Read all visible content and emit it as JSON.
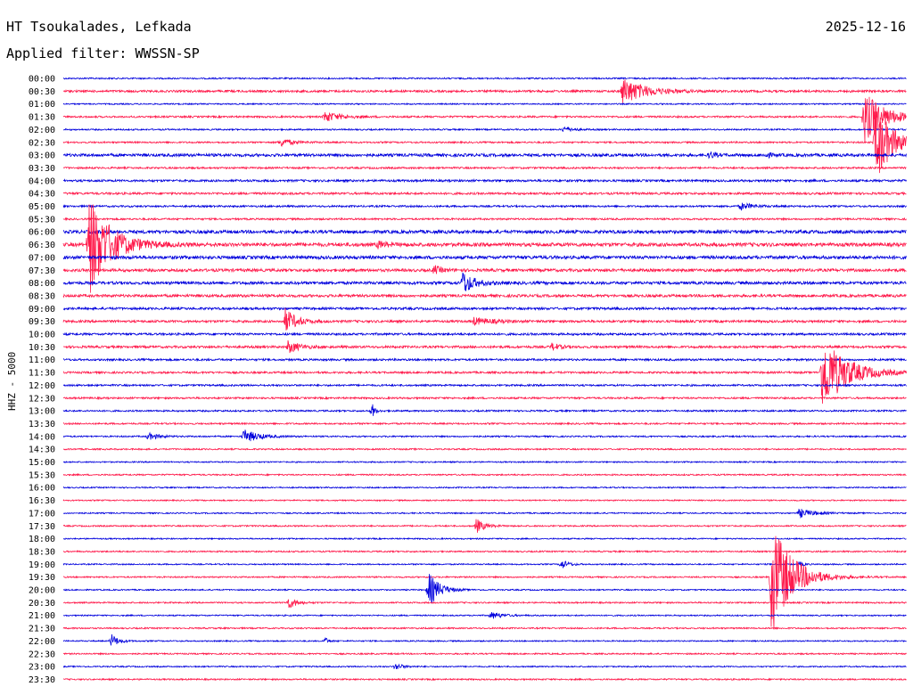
{
  "header": {
    "station": "HT Tsoukalades, Lefkada",
    "date": "2025-12-16",
    "filter": "Applied filter: WWSSN-SP"
  },
  "chart_data": {
    "type": "line",
    "title": "HT Tsoukalades, Lefkada",
    "ylabel": "HHZ - 5000",
    "x_unit": "minutes after row start",
    "xlim": [
      0,
      30
    ],
    "row_colors": [
      "#0000dd",
      "#ff1a4b"
    ],
    "rows": [
      "00:00",
      "00:30",
      "01:00",
      "01:30",
      "02:00",
      "02:30",
      "03:00",
      "03:30",
      "04:00",
      "04:30",
      "05:00",
      "05:30",
      "06:00",
      "06:30",
      "07:00",
      "07:30",
      "08:00",
      "08:30",
      "09:00",
      "09:30",
      "10:00",
      "10:30",
      "11:00",
      "11:30",
      "12:00",
      "12:30",
      "13:00",
      "13:30",
      "14:00",
      "14:30",
      "15:00",
      "15:30",
      "16:00",
      "16:30",
      "17:00",
      "17:30",
      "18:00",
      "18:30",
      "19:00",
      "19:30",
      "20:00",
      "20:30",
      "21:00",
      "21:30",
      "22:00",
      "22:30",
      "23:00",
      "23:30"
    ],
    "noise": [
      0.8,
      1.2,
      0.7,
      1.0,
      0.8,
      0.9,
      1.6,
      1.0,
      1.2,
      1.2,
      1.0,
      1.0,
      1.8,
      2.0,
      1.8,
      1.6,
      1.6,
      1.5,
      1.3,
      1.3,
      1.2,
      1.3,
      1.1,
      1.1,
      1.0,
      1.0,
      0.9,
      0.9,
      0.8,
      0.8,
      0.7,
      0.8,
      0.7,
      0.7,
      0.7,
      0.8,
      0.7,
      0.8,
      0.7,
      0.8,
      0.7,
      0.8,
      0.7,
      0.8,
      0.7,
      0.8,
      0.7,
      0.8
    ],
    "events": [
      {
        "row": 1,
        "t": 19.9,
        "amp": 16,
        "dur": 1.6
      },
      {
        "row": 3,
        "t": 9.3,
        "amp": 6,
        "dur": 1.2
      },
      {
        "row": 3,
        "t": 28.5,
        "amp": 30,
        "dur": 1.5
      },
      {
        "row": 4,
        "t": 17.8,
        "amp": 4,
        "dur": 0.6
      },
      {
        "row": 5,
        "t": 7.7,
        "amp": 5,
        "dur": 0.9
      },
      {
        "row": 5,
        "t": 28.9,
        "amp": 48,
        "dur": 1.2
      },
      {
        "row": 6,
        "t": 23.0,
        "amp": 4,
        "dur": 0.4
      },
      {
        "row": 6,
        "t": 25.0,
        "amp": 3,
        "dur": 0.4
      },
      {
        "row": 10,
        "t": 24.1,
        "amp": 4,
        "dur": 0.9
      },
      {
        "row": 13,
        "t": 0.9,
        "amp": 58,
        "dur": 1.6
      },
      {
        "row": 13,
        "t": 11.2,
        "amp": 4,
        "dur": 0.6
      },
      {
        "row": 15,
        "t": 13.2,
        "amp": 5,
        "dur": 0.5
      },
      {
        "row": 16,
        "t": 14.2,
        "amp": 14,
        "dur": 0.8
      },
      {
        "row": 19,
        "t": 7.9,
        "amp": 14,
        "dur": 0.8
      },
      {
        "row": 19,
        "t": 14.6,
        "amp": 4,
        "dur": 1.4
      },
      {
        "row": 21,
        "t": 8.0,
        "amp": 7,
        "dur": 0.8
      },
      {
        "row": 21,
        "t": 17.4,
        "amp": 4,
        "dur": 0.6
      },
      {
        "row": 23,
        "t": 27.0,
        "amp": 44,
        "dur": 1.8
      },
      {
        "row": 26,
        "t": 11.0,
        "amp": 9,
        "dur": 0.2
      },
      {
        "row": 28,
        "t": 3.0,
        "amp": 4,
        "dur": 0.8
      },
      {
        "row": 28,
        "t": 6.4,
        "amp": 8,
        "dur": 1.1
      },
      {
        "row": 34,
        "t": 26.2,
        "amp": 5,
        "dur": 1.1
      },
      {
        "row": 35,
        "t": 14.7,
        "amp": 8,
        "dur": 0.6
      },
      {
        "row": 38,
        "t": 17.7,
        "amp": 6,
        "dur": 0.5
      },
      {
        "row": 38,
        "t": 26.2,
        "amp": 3,
        "dur": 0.3
      },
      {
        "row": 39,
        "t": 25.2,
        "amp": 68,
        "dur": 1.5
      },
      {
        "row": 40,
        "t": 13.0,
        "amp": 20,
        "dur": 0.8
      },
      {
        "row": 41,
        "t": 8.0,
        "amp": 7,
        "dur": 0.6
      },
      {
        "row": 42,
        "t": 15.2,
        "amp": 4,
        "dur": 0.9
      },
      {
        "row": 44,
        "t": 1.7,
        "amp": 8,
        "dur": 0.5
      },
      {
        "row": 44,
        "t": 9.3,
        "amp": 4,
        "dur": 0.3
      },
      {
        "row": 46,
        "t": 11.8,
        "amp": 4,
        "dur": 0.6
      }
    ]
  }
}
